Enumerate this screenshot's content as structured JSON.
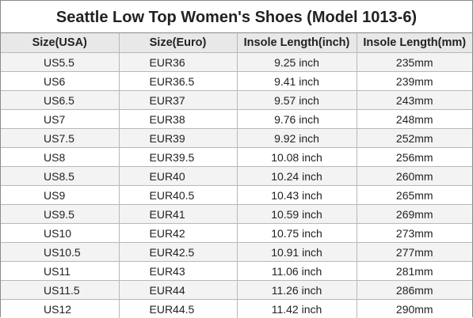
{
  "title": "Seattle Low Top Women's Shoes (Model 1013-6)",
  "columns": [
    "Size(USA)",
    "Size(Euro)",
    "Insole Length(inch)",
    "Insole Length(mm)"
  ],
  "rows": [
    [
      "US5.5",
      "EUR36",
      "9.25 inch",
      "235mm"
    ],
    [
      "US6",
      "EUR36.5",
      "9.41 inch",
      "239mm"
    ],
    [
      "US6.5",
      "EUR37",
      "9.57 inch",
      "243mm"
    ],
    [
      "US7",
      "EUR38",
      "9.76 inch",
      "248mm"
    ],
    [
      "US7.5",
      "EUR39",
      "9.92 inch",
      "252mm"
    ],
    [
      "US8",
      "EUR39.5",
      "10.08 inch",
      "256mm"
    ],
    [
      "US8.5",
      "EUR40",
      "10.24 inch",
      "260mm"
    ],
    [
      "US9",
      "EUR40.5",
      "10.43 inch",
      "265mm"
    ],
    [
      "US9.5",
      "EUR41",
      "10.59 inch",
      "269mm"
    ],
    [
      "US10",
      "EUR42",
      "10.75 inch",
      "273mm"
    ],
    [
      "US10.5",
      "EUR42.5",
      "10.91 inch",
      "277mm"
    ],
    [
      "US11",
      "EUR43",
      "11.06 inch",
      "281mm"
    ],
    [
      "US11.5",
      "EUR44",
      "11.26 inch",
      "286mm"
    ],
    [
      "US12",
      "EUR44.5",
      "11.42 inch",
      "290mm"
    ]
  ]
}
